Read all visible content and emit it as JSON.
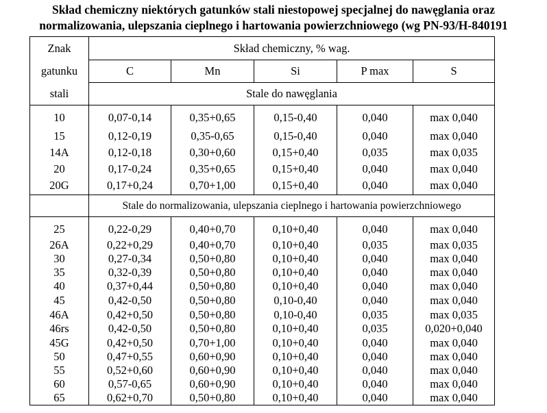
{
  "title": {
    "line1": "Skład chemiczny niektórych gatunków stali niestopowej specjalnej do nawęglania oraz",
    "line2": "normalizowania, ulepszania cieplnego i hartowania powierzchniowego (wg PN-93/H-840191"
  },
  "header": {
    "grade_line1": "Znak",
    "grade_line2": "gatunku",
    "grade_line3": "stali",
    "composition": "Skład chemiczny, % wag.",
    "columns": [
      "C",
      "Mn",
      "Si",
      "P max",
      "S"
    ]
  },
  "section1": {
    "title": "Stale do nawęglania",
    "rows": [
      [
        "10",
        "0,07-0,14",
        "0,35+0,65",
        "0,15-0,40",
        "0,040",
        "max 0,040"
      ],
      [
        "15",
        "0,12-0,19",
        "0,35-0,65",
        "0,15-0,40",
        "0,040",
        "max 0,040"
      ],
      [
        "14A",
        "0,12-0,18",
        "0,30+0,60",
        "0,15+0,40",
        "0,035",
        "max 0,035"
      ],
      [
        "20",
        "0,17-0,24",
        "0,35+0,65",
        "0,15+0,40",
        "0,040",
        "max 0,040"
      ],
      [
        "20G",
        "0,17+0,24",
        "0,70+1,00",
        "0,15+0,40",
        "0,040",
        "max 0,040"
      ]
    ]
  },
  "section2": {
    "title": "Stale do normalizowania, ulepszania cieplnego i hartowania powierzchniowego",
    "rows": [
      [
        "25",
        "0,22-0,29",
        "0,40+0,70",
        "0,10+0,40",
        "0,040",
        "max 0,040"
      ],
      [
        "26A",
        "0,22+0,29",
        "0,40+0,70",
        "0,10+0,40",
        "0,035",
        "max 0,035"
      ],
      [
        "30",
        "0,27-0,34",
        "0,50+0,80",
        "0,10+0,40",
        "0,040",
        "max 0,040"
      ],
      [
        "35",
        "0,32-0,39",
        "0,50+0,80",
        "0,10+0,40",
        "0,040",
        "max 0,040"
      ],
      [
        "40",
        "0,37+0,44",
        "0,50+0,80",
        "0,10+0,40",
        "0,040",
        "max 0,040"
      ],
      [
        "45",
        "0,42-0,50",
        "0,50+0,80",
        "0,10-0,40",
        "0,040",
        "max 0,040"
      ],
      [
        "46A",
        "0,42+0,50",
        "0,50+0,80",
        "0,10-0,40",
        "0,035",
        "max 0,035"
      ],
      [
        "46rs",
        "0,42-0,50",
        "0,50+0,80",
        "0,10+0,40",
        "0,035",
        "0,020+0,040"
      ],
      [
        "45G",
        "0,42+0,50",
        "0,70+1,00",
        "0,10+0,40",
        "0,040",
        "max 0,040"
      ],
      [
        "50",
        "0,47+0,55",
        "0,60+0,90",
        "0,10+0,40",
        "0,040",
        "max 0,040"
      ],
      [
        "55",
        "0,52+0,60",
        "0,60+0,90",
        "0,10+0,40",
        "0,040",
        "max 0,040"
      ],
      [
        "60",
        "0,57-0,65",
        "0,60+0,90",
        "0,10+0,40",
        "0,040",
        "max 0,040"
      ],
      [
        "65",
        "0,62+0,70",
        "0,50+0,80",
        "0,10+0,40",
        "0,040",
        "max 0,040"
      ]
    ]
  }
}
